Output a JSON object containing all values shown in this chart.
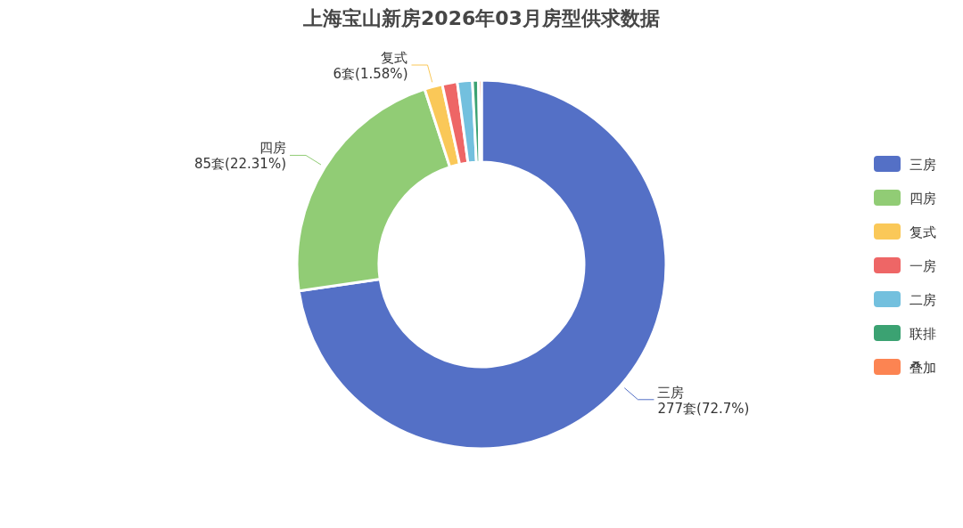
{
  "chart_data": {
    "type": "donut",
    "title": "上海宝山新房2026年03月房型供求数据",
    "categories": [
      "三房",
      "四房",
      "复式",
      "一房",
      "二房",
      "联排",
      "叠加"
    ],
    "values": [
      277,
      85,
      6,
      5,
      5,
      2,
      1
    ],
    "colors": [
      "#5470c6",
      "#91cc75",
      "#fac858",
      "#ee6666",
      "#73c0de",
      "#3ba272",
      "#fc8452"
    ],
    "value_labels": [
      "277套(72.7%)",
      "85套(22.31%)",
      "6套(1.58%)",
      null,
      null,
      null,
      null
    ],
    "legend": "right"
  }
}
